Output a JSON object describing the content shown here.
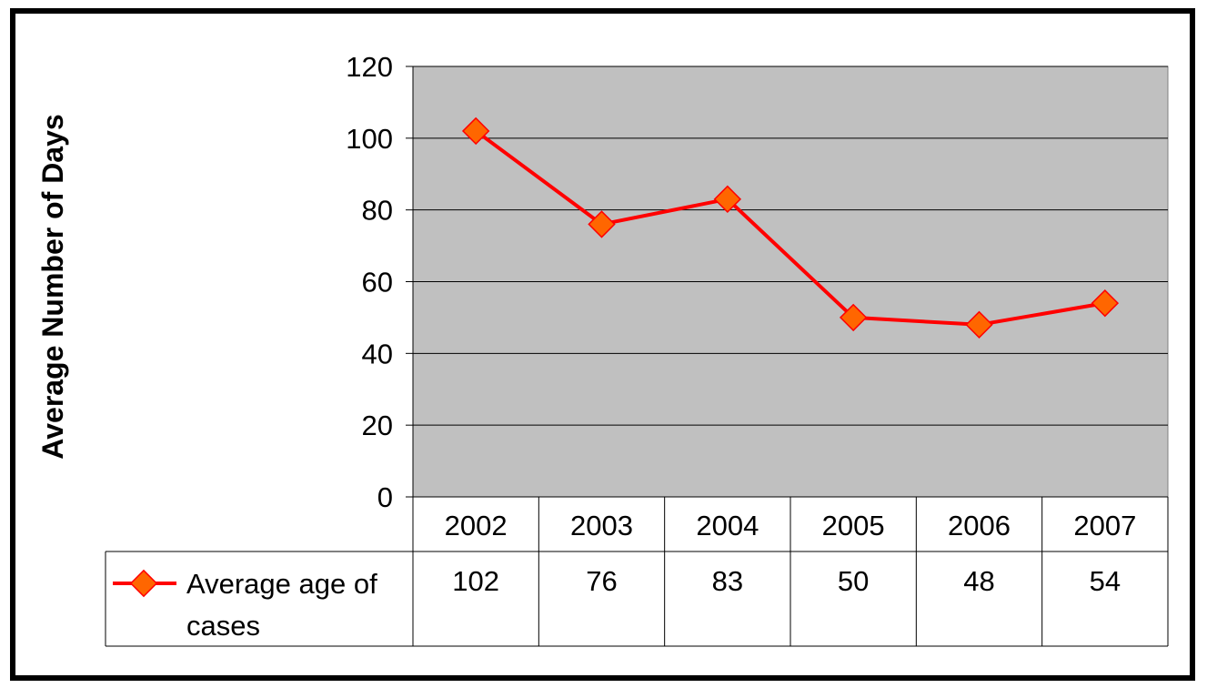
{
  "chart_data": {
    "type": "line",
    "ylabel": "Average Number of Days",
    "ylim": [
      0,
      120
    ],
    "yticks": [
      0,
      20,
      40,
      60,
      80,
      100,
      120
    ],
    "grid": true,
    "categories": [
      "2002",
      "2003",
      "2004",
      "2005",
      "2006",
      "2007"
    ],
    "series": [
      {
        "name_lines": [
          "Average age of",
          "cases"
        ],
        "values": [
          102,
          76,
          83,
          50,
          48,
          54
        ],
        "line_color": "#ff0000",
        "marker": "diamond",
        "marker_fill": "#ff6600",
        "marker_edge": "#ff0000"
      }
    ],
    "data_table": true,
    "plot_background": "#c0c0c0"
  }
}
